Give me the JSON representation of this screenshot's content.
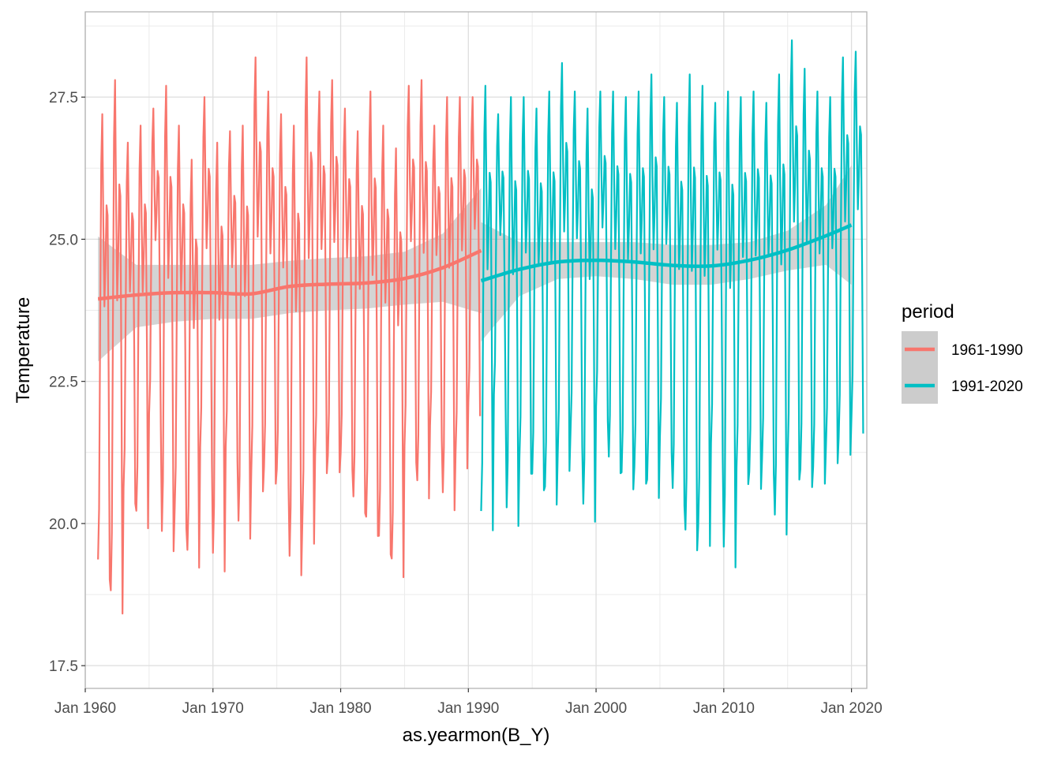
{
  "chart_data": {
    "type": "line",
    "xlabel": "as.yearmon(B_Y)",
    "ylabel": "Temperature",
    "xlim": [
      1960.0,
      2021.2
    ],
    "ylim": [
      17.1,
      29.0
    ],
    "x_ticks": [
      1960,
      1970,
      1980,
      1990,
      2000,
      2010,
      2020
    ],
    "x_tick_labels": [
      "Jan 1960",
      "Jan 1970",
      "Jan 1980",
      "Jan 1990",
      "Jan 2000",
      "Jan 2010",
      "Jan 2020"
    ],
    "y_ticks": [
      17.5,
      20.0,
      22.5,
      25.0,
      27.5
    ],
    "y_tick_labels": [
      "17.5",
      "20.0",
      "22.5",
      "25.0",
      "27.5"
    ],
    "grid": true,
    "legend": {
      "title": "period",
      "position": "right"
    },
    "series": [
      {
        "name": "1961-1990",
        "color": "#F8766D",
        "start_year": 1961,
        "end_year": 1990,
        "annual_peaks": [
          27.2,
          27.8,
          26.7,
          27.0,
          27.3,
          27.7,
          27.0,
          26.4,
          27.5,
          26.7,
          26.9,
          27.0,
          28.2,
          27.6,
          27.2,
          27.0,
          28.2,
          27.6,
          27.8,
          27.3,
          26.9,
          27.6,
          27.0,
          26.6,
          27.7,
          27.8,
          27.0,
          27.5,
          27.5,
          27.5
        ],
        "annual_troughs": [
          18.3,
          17.6,
          19.8,
          19.3,
          21.2,
          18.8,
          19.3,
          18.6,
          20.5,
          18.5,
          20.6,
          19.1,
          19.9,
          20.1,
          20.1,
          18.4,
          18.9,
          20.3,
          20.3,
          20.4,
          19.6,
          19.1,
          18.8,
          18.4,
          20.5,
          19.8,
          21.0,
          19.6,
          20.4,
          21.4
        ],
        "trend_x": [
          1961,
          1964,
          1967,
          1970,
          1973,
          1976,
          1979,
          1982,
          1985,
          1988,
          1991
        ],
        "trend_y": [
          23.95,
          24.02,
          24.06,
          24.06,
          24.04,
          24.17,
          24.21,
          24.23,
          24.31,
          24.5,
          24.8
        ],
        "ci_lower": [
          22.85,
          23.45,
          23.55,
          23.6,
          23.6,
          23.7,
          23.75,
          23.78,
          23.85,
          23.9,
          23.7
        ],
        "ci_upper": [
          25.05,
          24.55,
          24.55,
          24.55,
          24.55,
          24.62,
          24.67,
          24.7,
          24.78,
          25.1,
          25.9
        ]
      },
      {
        "name": "1991-2020",
        "color": "#00BFC4",
        "start_year": 1991,
        "end_year": 2020,
        "annual_peaks": [
          27.7,
          27.2,
          27.5,
          27.5,
          27.3,
          27.6,
          28.1,
          27.6,
          27.3,
          27.6,
          27.6,
          27.5,
          27.6,
          27.9,
          27.5,
          27.4,
          27.9,
          27.7,
          27.4,
          27.6,
          27.5,
          27.6,
          27.4,
          27.9,
          28.5,
          28.0,
          27.6,
          27.5,
          28.2,
          28.3
        ],
        "annual_troughs": [
          19.2,
          21.6,
          19.3,
          20.3,
          20.0,
          19.7,
          20.3,
          20.8,
          19.4,
          21.3,
          20.3,
          20.0,
          20.1,
          19.8,
          20.7,
          19.7,
          18.8,
          18.9,
          20.6,
          18.5,
          20.1,
          20.0,
          20.3,
          19.1,
          20.1,
          20.0,
          20.1,
          20.5,
          20.6,
          21.0
        ],
        "trend_x": [
          1991,
          1994,
          1997,
          2000,
          2003,
          2006,
          2009,
          2012,
          2015,
          2018,
          2020
        ],
        "trend_y": [
          24.27,
          24.47,
          24.6,
          24.63,
          24.6,
          24.54,
          24.53,
          24.63,
          24.81,
          25.06,
          25.25
        ],
        "ci_lower": [
          23.2,
          24.0,
          24.3,
          24.35,
          24.3,
          24.2,
          24.2,
          24.3,
          24.45,
          24.55,
          24.2
        ],
        "ci_upper": [
          25.3,
          24.95,
          24.95,
          24.95,
          24.95,
          24.9,
          24.9,
          24.95,
          25.15,
          25.6,
          26.3
        ]
      }
    ]
  }
}
